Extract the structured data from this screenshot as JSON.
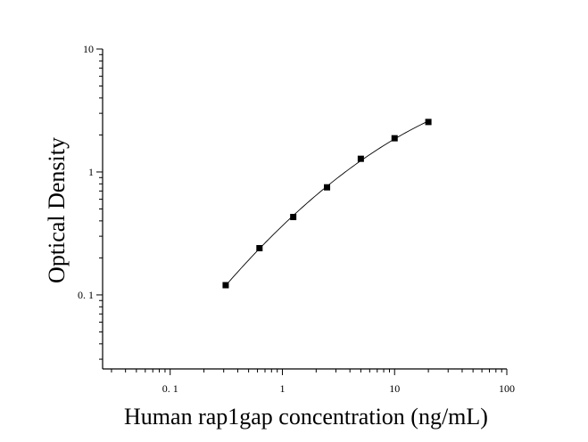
{
  "chart_data": {
    "type": "scatter",
    "xlabel": "Human rap1gap concentration (ng/mL)",
    "ylabel": "Optical Density",
    "x_scale": "log",
    "y_scale": "log",
    "xlim": [
      0.025,
      100
    ],
    "ylim": [
      0.025,
      10
    ],
    "x_ticks": [
      {
        "value": 0.1,
        "label": "0. 1"
      },
      {
        "value": 1,
        "label": "1"
      },
      {
        "value": 10,
        "label": "10"
      },
      {
        "value": 100,
        "label": "100"
      }
    ],
    "y_ticks": [
      {
        "value": 0.1,
        "label": "0. 1"
      },
      {
        "value": 1,
        "label": "1"
      },
      {
        "value": 10,
        "label": "10"
      }
    ],
    "grid": false,
    "legend": "none",
    "marker_color": "#000000",
    "line_color": "#000000",
    "series": [
      {
        "points": [
          {
            "x": 0.3125,
            "y": 0.12
          },
          {
            "x": 0.625,
            "y": 0.24
          },
          {
            "x": 1.25,
            "y": 0.43
          },
          {
            "x": 2.5,
            "y": 0.75
          },
          {
            "x": 5,
            "y": 1.28
          },
          {
            "x": 10,
            "y": 1.88
          },
          {
            "x": 20,
            "y": 2.55
          }
        ],
        "fit_curve": true
      }
    ]
  }
}
